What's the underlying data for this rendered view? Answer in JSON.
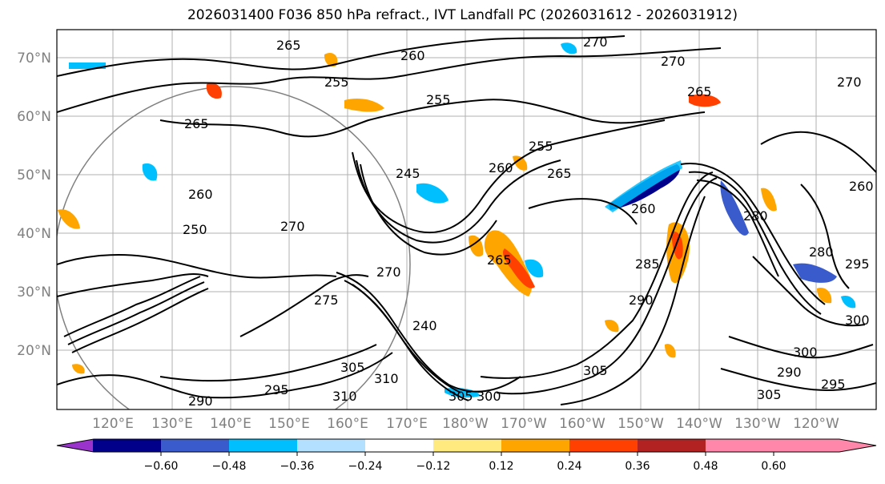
{
  "title": "2026031400 F036 850 hPa refract., IVT Landfall PC (2026031612 - 2026031912)",
  "map": {
    "lat_labels": [
      "70°N",
      "60°N",
      "50°N",
      "40°N",
      "30°N",
      "20°N"
    ],
    "lon_labels": [
      "120°E",
      "130°E",
      "140°E",
      "150°E",
      "160°E",
      "170°E",
      "180°W",
      "170°W",
      "160°W",
      "150°W",
      "140°W",
      "130°W",
      "120°W"
    ],
    "contour_labels": [
      "265",
      "260",
      "255",
      "270",
      "270",
      "265",
      "255",
      "265",
      "260",
      "255",
      "250",
      "260",
      "270",
      "265",
      "245",
      "260",
      "270",
      "265",
      "285",
      "280",
      "290",
      "280",
      "275",
      "290",
      "295",
      "305",
      "310",
      "300",
      "305",
      "310",
      "295",
      "290",
      "305",
      "300",
      "305",
      "300",
      "295",
      "270",
      "260",
      "240"
    ]
  },
  "colorbar": {
    "tick_labels": [
      "−0.60",
      "−0.48",
      "−0.36",
      "−0.24",
      "−0.12",
      "0.12",
      "0.24",
      "0.36",
      "0.48",
      "0.60"
    ],
    "colors": [
      "#9933cc",
      "#00008b",
      "#3a5bcc",
      "#00bfff",
      "#b3e0ff",
      "#ffffff",
      "#ffea80",
      "#ffa500",
      "#ff4000",
      "#b22222",
      "#ff88aa"
    ]
  }
}
